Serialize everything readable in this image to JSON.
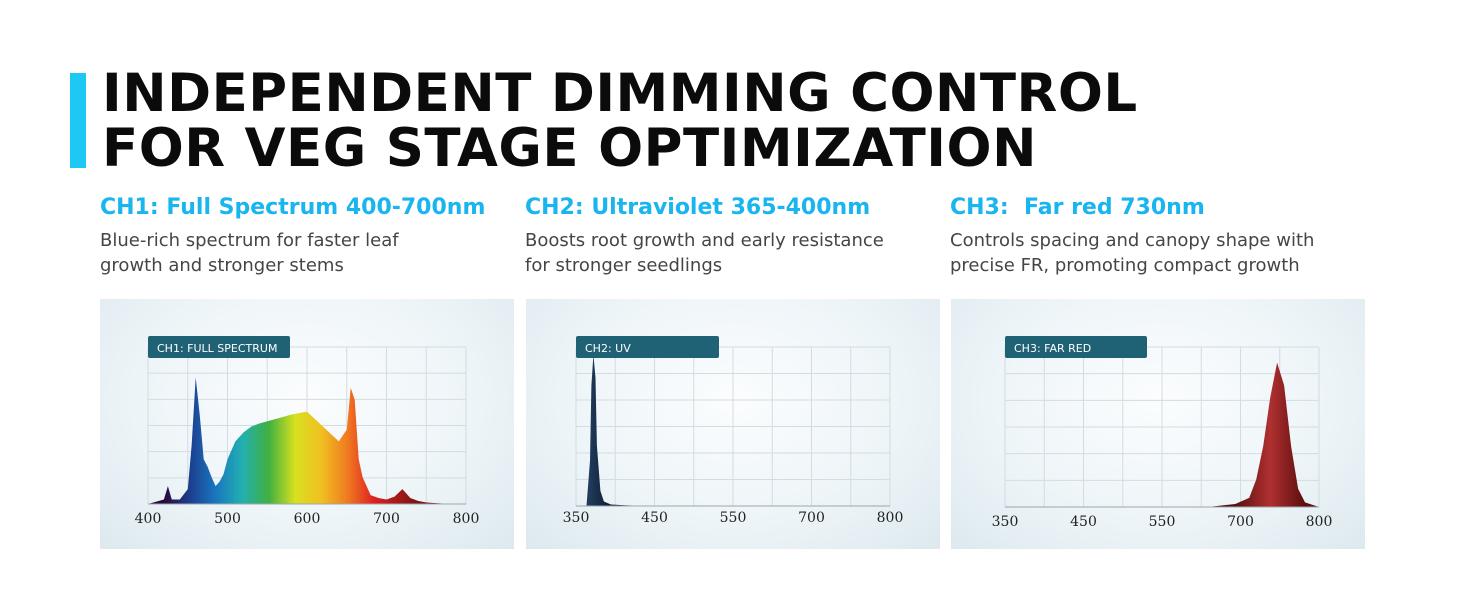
{
  "header": {
    "line1": "INDEPENDENT DIMMING CONTROL",
    "line2": "FOR VEG STAGE OPTIMIZATION",
    "accent_color": "#1ec8f5"
  },
  "channels": [
    {
      "title": "CH1: Full Spectrum 400-700nm",
      "desc_line1": "Blue-rich spectrum for faster leaf",
      "desc_line2": "growth and stronger stems"
    },
    {
      "title": "CH2: Ultraviolet 365-400nm",
      "desc_line1": "Boosts root growth and early resistance",
      "desc_line2": "for stronger seedlings"
    },
    {
      "title": "CH3:  Far red 730nm",
      "desc_line1": "Controls spacing and canopy shape with",
      "desc_line2": "precise FR, promoting compact growth"
    }
  ],
  "chart_data": [
    {
      "type": "area",
      "tag": "CH1: FULL SPECTRUM",
      "xticks": [
        "400",
        "500",
        "600",
        "700",
        "800"
      ],
      "xlim": [
        400,
        800
      ],
      "ylim": [
        0,
        1
      ],
      "x": [
        400,
        420,
        425,
        430,
        440,
        450,
        455,
        460,
        465,
        470,
        475,
        480,
        485,
        490,
        495,
        500,
        510,
        520,
        530,
        540,
        560,
        580,
        600,
        620,
        640,
        650,
        655,
        660,
        665,
        670,
        680,
        690,
        700,
        710,
        720,
        730,
        740,
        750,
        780,
        800
      ],
      "values": [
        0,
        0.03,
        0.12,
        0.03,
        0.03,
        0.1,
        0.4,
        0.85,
        0.6,
        0.3,
        0.25,
        0.18,
        0.12,
        0.15,
        0.2,
        0.3,
        0.42,
        0.48,
        0.52,
        0.54,
        0.57,
        0.6,
        0.62,
        0.52,
        0.42,
        0.5,
        0.78,
        0.7,
        0.3,
        0.18,
        0.06,
        0.04,
        0.03,
        0.05,
        0.1,
        0.04,
        0.02,
        0.01,
        0,
        0
      ],
      "colors": [
        "#2a0a3a",
        "#1c3f8f",
        "#1a78c0",
        "#22b0b0",
        "#40b040",
        "#d8e020",
        "#f0c020",
        "#f07a20",
        "#e02020",
        "#a01818",
        "#6a1010"
      ]
    },
    {
      "type": "area",
      "tag": "CH2: UV",
      "xticks": [
        "350",
        "450",
        "550",
        "700",
        "800"
      ],
      "xlim": [
        350,
        800
      ],
      "ylim": [
        0,
        1
      ],
      "x": [
        350,
        365,
        370,
        372,
        375,
        378,
        380,
        385,
        390,
        400,
        420,
        450,
        800
      ],
      "values": [
        0,
        0,
        0.3,
        0.8,
        1.0,
        0.85,
        0.4,
        0.1,
        0.03,
        0.01,
        0.005,
        0,
        0
      ],
      "colors": [
        "#1f3a5a",
        "#0d1b2e"
      ]
    },
    {
      "type": "area",
      "tag": "CH3: FAR RED",
      "xticks": [
        "350",
        "450",
        "550",
        "700",
        "800"
      ],
      "xlim": [
        350,
        800
      ],
      "ylim": [
        0,
        1
      ],
      "x": [
        350,
        640,
        680,
        700,
        710,
        720,
        730,
        740,
        750,
        760,
        770,
        780,
        800
      ],
      "values": [
        0,
        0,
        0.02,
        0.06,
        0.18,
        0.4,
        0.72,
        0.95,
        0.8,
        0.4,
        0.12,
        0.03,
        0
      ],
      "colors": [
        "#5a0e0e",
        "#b03030",
        "#5a0e0e"
      ]
    }
  ]
}
